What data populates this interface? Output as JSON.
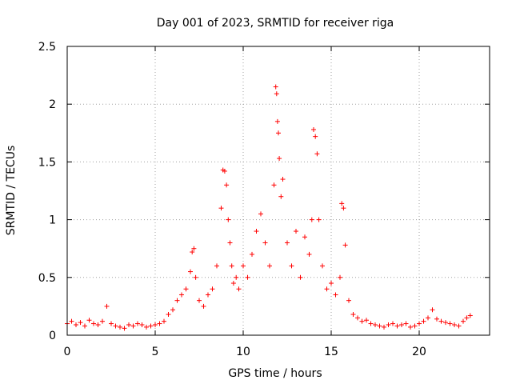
{
  "chart_data": {
    "type": "scatter",
    "title": "Day 001 of 2023, SRMTID for receiver riga",
    "xlabel": "GPS time / hours",
    "ylabel": "SRMTID / TECUs",
    "xlim": [
      0,
      24
    ],
    "ylim": [
      0,
      2.5
    ],
    "xticks": [
      "0",
      "5",
      "10",
      "15",
      "20"
    ],
    "yticks": [
      "0",
      "0.5",
      "1",
      "1.5",
      "2",
      "2.5"
    ],
    "xtick_values": [
      0,
      5,
      10,
      15,
      20
    ],
    "ytick_values": [
      0,
      0.5,
      1,
      1.5,
      2,
      2.5
    ],
    "grid": true,
    "marker": "+",
    "color": "#ff0000",
    "series": [
      {
        "name": "SRMTID",
        "x": [
          0.0,
          0.25,
          0.5,
          0.75,
          1.0,
          1.25,
          1.5,
          1.75,
          2.0,
          2.25,
          2.5,
          2.75,
          3.0,
          3.25,
          3.5,
          3.75,
          4.0,
          4.25,
          4.5,
          4.75,
          5.0,
          5.25,
          5.5,
          5.75,
          6.0,
          6.25,
          6.5,
          6.75,
          7.0,
          7.1,
          7.2,
          7.3,
          7.5,
          7.75,
          8.0,
          8.25,
          8.5,
          8.75,
          8.85,
          8.95,
          9.05,
          9.15,
          9.25,
          9.35,
          9.45,
          9.6,
          9.75,
          10.0,
          10.25,
          10.5,
          10.75,
          11.0,
          11.25,
          11.5,
          11.75,
          11.85,
          11.9,
          11.95,
          12.0,
          12.05,
          12.15,
          12.25,
          12.5,
          12.75,
          13.0,
          13.25,
          13.5,
          13.75,
          13.9,
          14.0,
          14.1,
          14.2,
          14.3,
          14.5,
          14.75,
          15.0,
          15.25,
          15.5,
          15.6,
          15.7,
          15.8,
          16.0,
          16.25,
          16.5,
          16.75,
          17.0,
          17.25,
          17.5,
          17.75,
          18.0,
          18.25,
          18.5,
          18.75,
          19.0,
          19.25,
          19.5,
          19.75,
          20.0,
          20.25,
          20.5,
          20.75,
          21.0,
          21.25,
          21.5,
          21.75,
          22.0,
          22.25,
          22.5,
          22.7,
          22.9
        ],
        "y": [
          0.1,
          0.12,
          0.09,
          0.11,
          0.08,
          0.13,
          0.1,
          0.09,
          0.12,
          0.25,
          0.1,
          0.08,
          0.07,
          0.06,
          0.09,
          0.08,
          0.1,
          0.09,
          0.07,
          0.08,
          0.09,
          0.1,
          0.12,
          0.18,
          0.22,
          0.3,
          0.35,
          0.4,
          0.55,
          0.72,
          0.75,
          0.5,
          0.3,
          0.25,
          0.35,
          0.4,
          0.6,
          1.1,
          1.43,
          1.42,
          1.3,
          1.0,
          0.8,
          0.6,
          0.45,
          0.5,
          0.4,
          0.6,
          0.5,
          0.7,
          0.9,
          1.05,
          0.8,
          0.6,
          1.3,
          2.15,
          2.09,
          1.85,
          1.75,
          1.53,
          1.2,
          1.35,
          0.8,
          0.6,
          0.9,
          0.5,
          0.85,
          0.7,
          1.0,
          1.78,
          1.72,
          1.57,
          1.0,
          0.6,
          0.4,
          0.45,
          0.35,
          0.5,
          1.14,
          1.1,
          0.78,
          0.3,
          0.18,
          0.15,
          0.12,
          0.13,
          0.1,
          0.09,
          0.08,
          0.07,
          0.09,
          0.1,
          0.08,
          0.09,
          0.1,
          0.07,
          0.08,
          0.1,
          0.12,
          0.15,
          0.22,
          0.14,
          0.12,
          0.11,
          0.1,
          0.09,
          0.08,
          0.12,
          0.15,
          0.17
        ]
      }
    ]
  }
}
